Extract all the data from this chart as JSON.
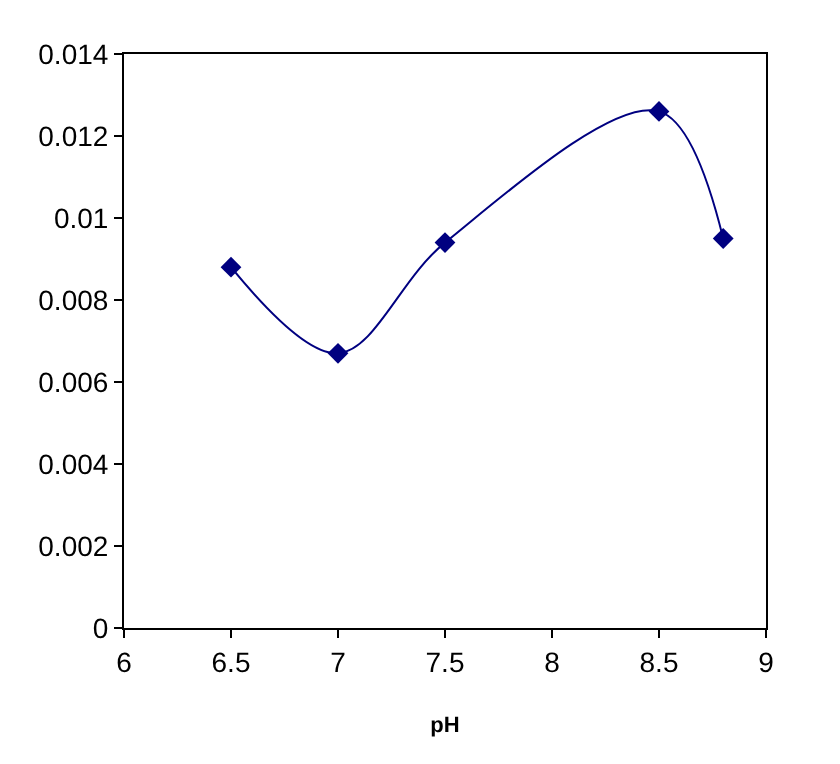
{
  "chart_data": {
    "type": "line",
    "xlabel": "pH",
    "x": [
      6.5,
      7,
      7.5,
      8.5,
      8.8
    ],
    "series": [
      {
        "color": "#000080",
        "values": [
          0.0088,
          0.0067,
          0.0094,
          0.0126,
          0.0095
        ]
      }
    ],
    "xlim": [
      6,
      9
    ],
    "xticks": [
      6,
      6.5,
      7,
      7.5,
      8,
      8.5,
      9
    ],
    "ylim": [
      0,
      0.014
    ],
    "yticks": [
      0,
      0.002,
      0.004,
      0.006,
      0.008,
      0.01,
      0.012,
      0.014
    ],
    "marker": "diamond",
    "line_style": "solid"
  }
}
